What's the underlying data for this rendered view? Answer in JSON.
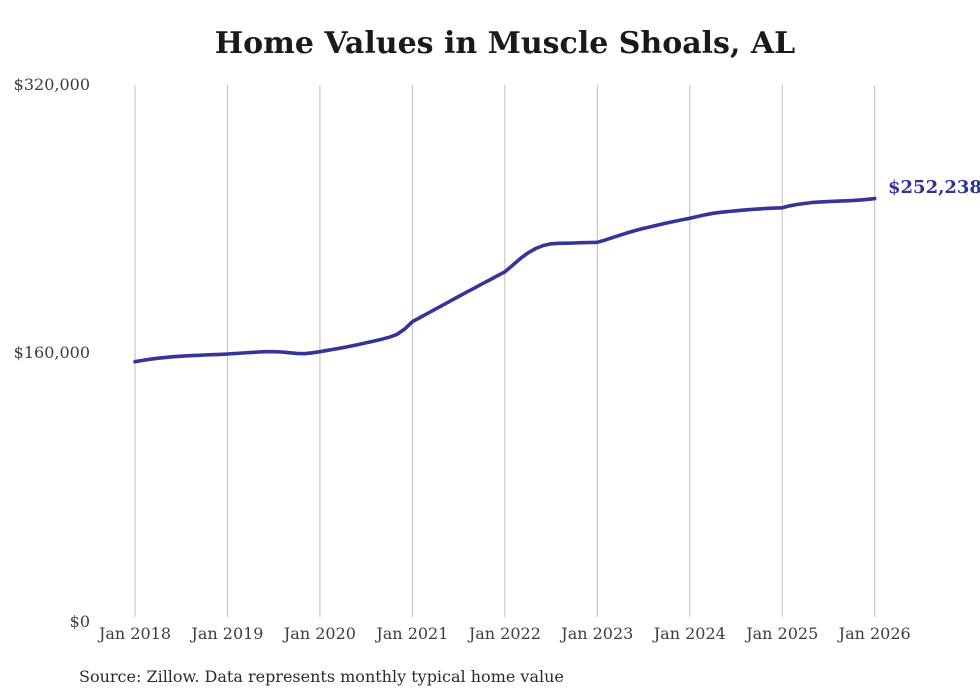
{
  "page": {
    "background": "#ffffff"
  },
  "chart": {
    "title": "Home Values in Muscle Shoals, AL",
    "end_label": "$252,238",
    "source": "Source: Zillow. Data represents monthly typical home value",
    "colors": {
      "line": "#34349b",
      "end_label": "#31319b",
      "gridline": "#bcbcbc",
      "title_text": "#1a1a1a",
      "axis_text": "#3d3d3d",
      "source_text": "#2b2b2b"
    }
  },
  "chart_data": {
    "type": "line",
    "title": "Home Values in Muscle Shoals, AL",
    "legend": "none",
    "grid": "vertical-only",
    "ylim": [
      0,
      320000
    ],
    "y_ticks": [
      {
        "label": "$0",
        "value": 0
      },
      {
        "label": "$160,000",
        "value": 160000
      },
      {
        "label": "$320,000",
        "value": 320000
      }
    ],
    "x_labels": [
      "Jan 2018",
      "Jan 2019",
      "Jan 2020",
      "Jan 2021",
      "Jan 2022",
      "Jan 2023",
      "Jan 2024",
      "Jan 2025",
      "Jan 2026"
    ],
    "x_unit": "month",
    "x_start": "Jan 2018",
    "x_end": "Jan 2026",
    "latest_value": 252238,
    "series": [
      {
        "name": "Typical home value",
        "values": [
          155000,
          155800,
          156500,
          157100,
          157600,
          158000,
          158300,
          158600,
          158800,
          159000,
          159200,
          159400,
          159600,
          159900,
          160200,
          160500,
          160800,
          161000,
          161000,
          160800,
          160400,
          160000,
          159800,
          160300,
          161000,
          161800,
          162600,
          163400,
          164300,
          165300,
          166300,
          167300,
          168400,
          169600,
          171300,
          174500,
          178900,
          181400,
          183900,
          186400,
          188900,
          191400,
          193900,
          196400,
          198800,
          201300,
          203700,
          206200,
          208600,
          212500,
          216500,
          219900,
          222500,
          224300,
          225300,
          225600,
          225700,
          225800,
          226000,
          226100,
          226200,
          227500,
          229000,
          230500,
          232000,
          233300,
          234500,
          235600,
          236700,
          237700,
          238700,
          239600,
          240500,
          241600,
          242600,
          243500,
          244100,
          244600,
          245000,
          245400,
          245800,
          246100,
          246400,
          246600,
          246800,
          248000,
          248800,
          249400,
          250000,
          250300,
          250500,
          250700,
          250900,
          251100,
          251400,
          251800,
          252238
        ]
      }
    ]
  }
}
